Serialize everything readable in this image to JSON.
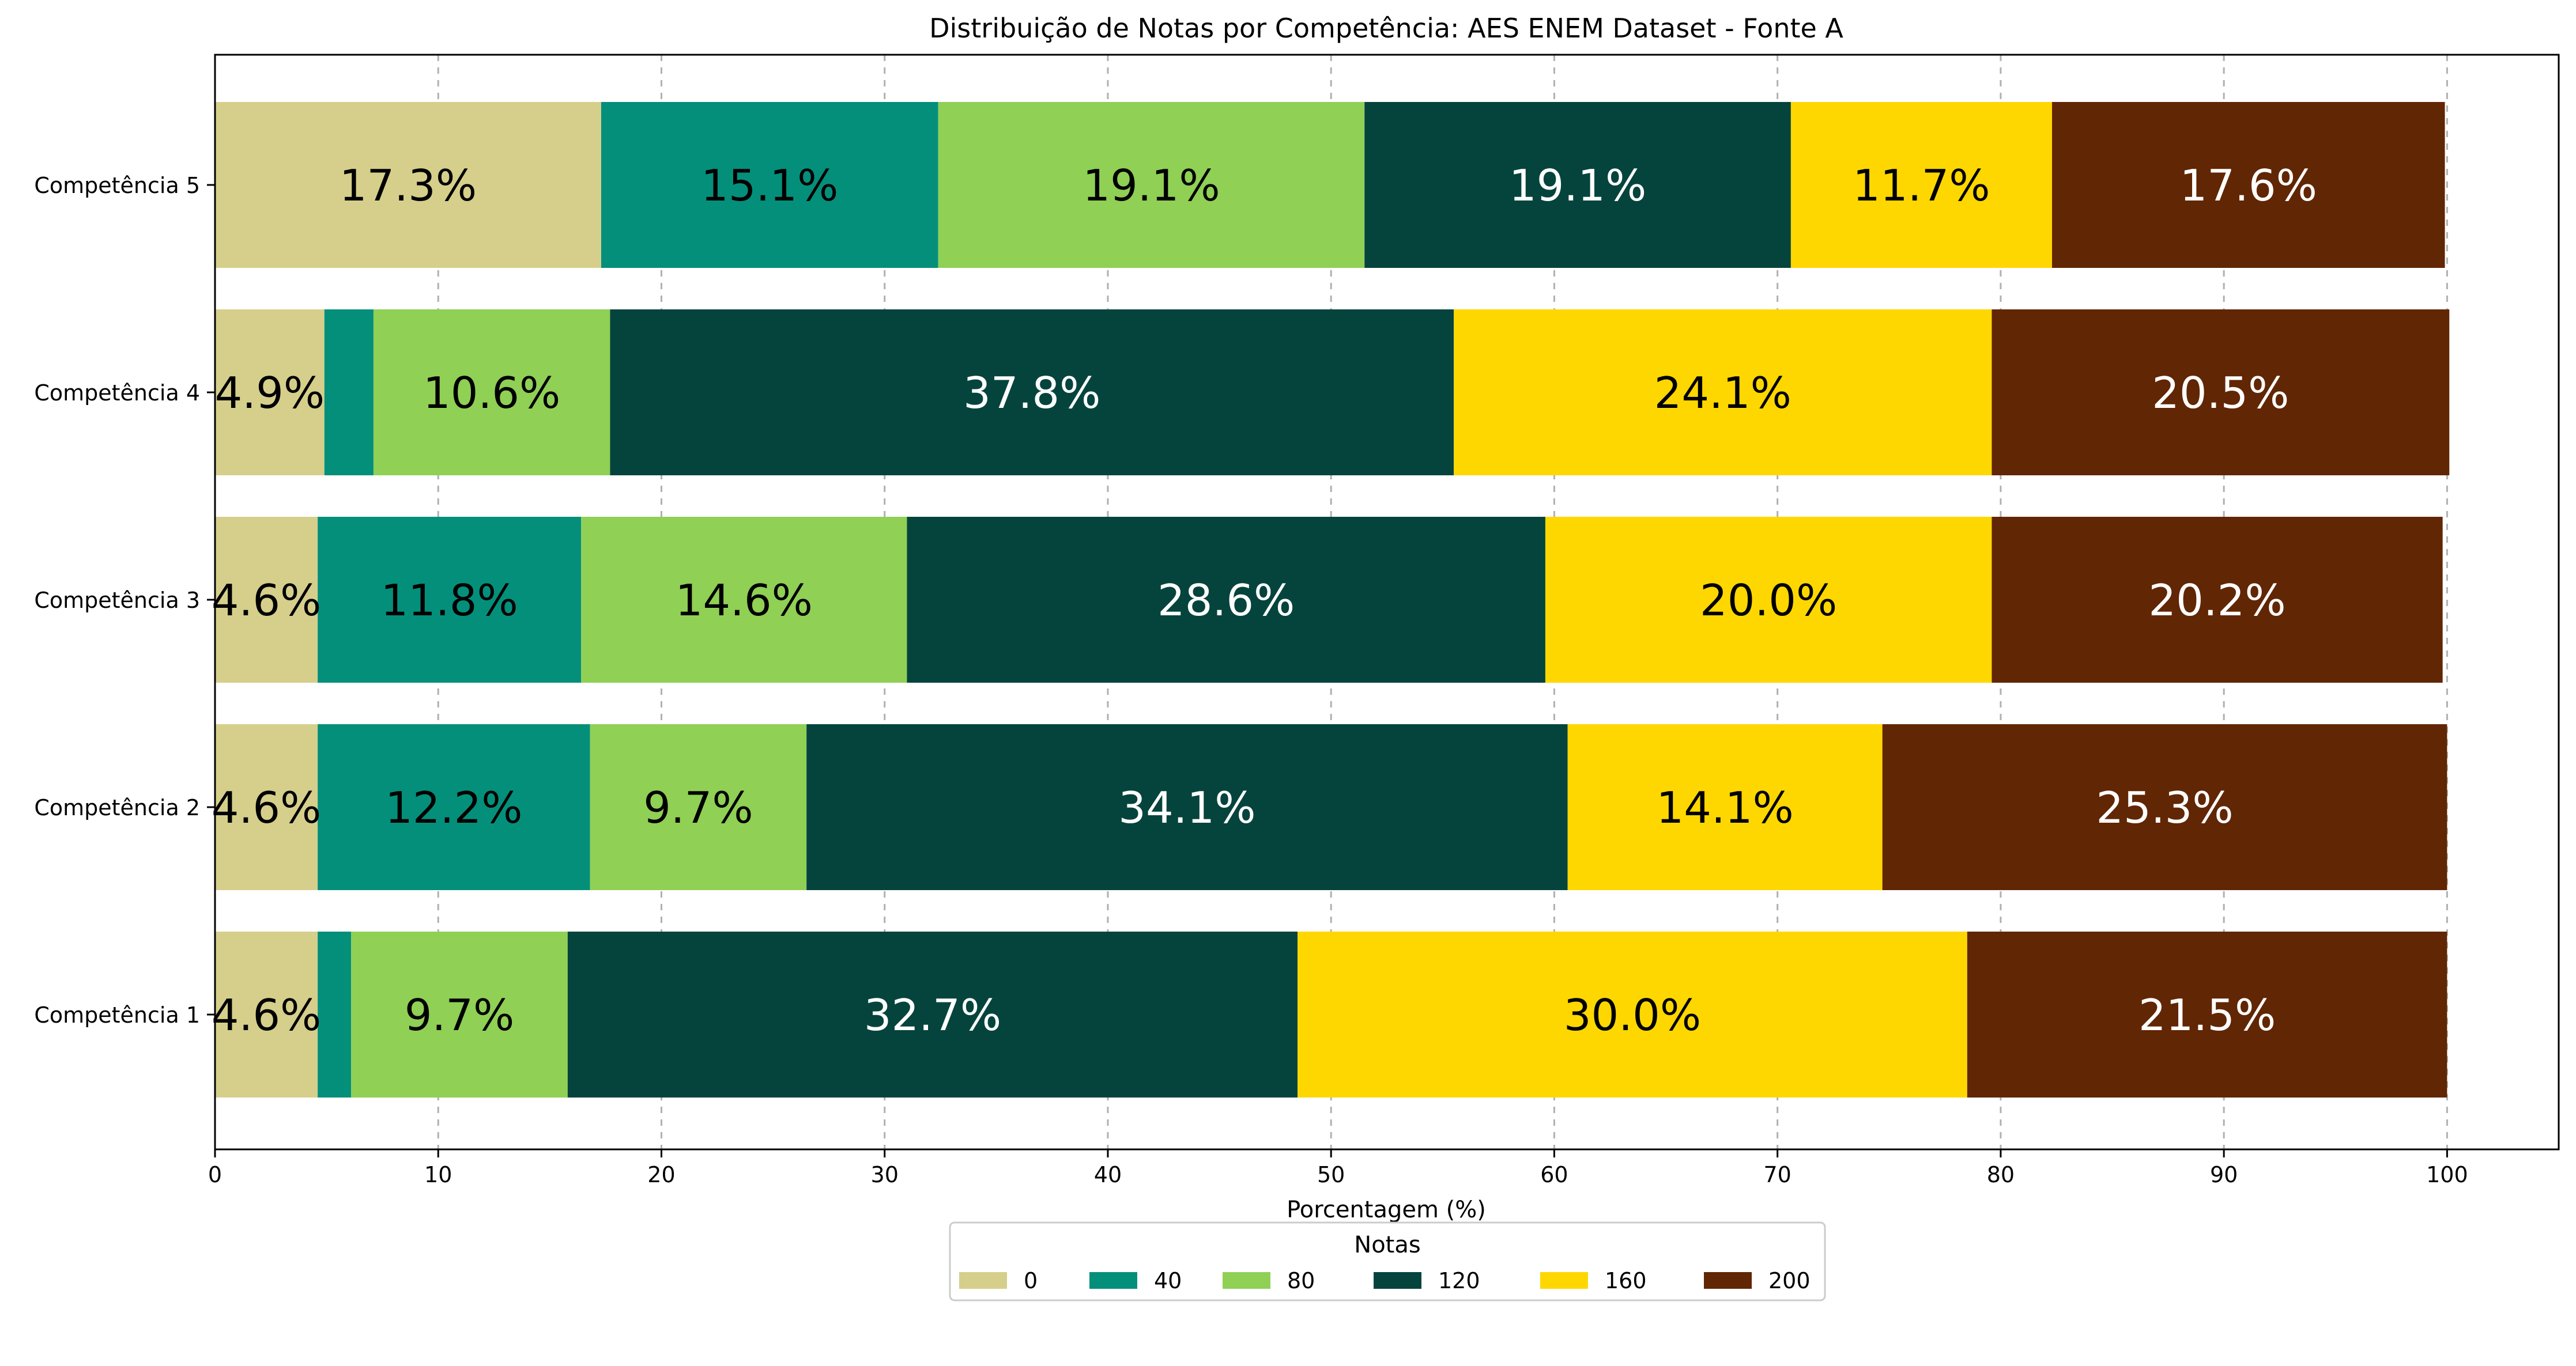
{
  "chart_data": {
    "type": "bar",
    "orientation": "horizontal",
    "stacked": true,
    "title": "Distribuição de Notas por Competência: AES ENEM Dataset - Fonte A",
    "xlabel": "Porcentagem (%)",
    "ylabel": "",
    "xlim": [
      0,
      105
    ],
    "x_ticks": [
      0,
      10,
      20,
      30,
      40,
      50,
      60,
      70,
      80,
      90,
      100
    ],
    "grid": "x-dashed",
    "categories": [
      "Competência 1",
      "Competência 2",
      "Competência 3",
      "Competência 4",
      "Competência 5"
    ],
    "series": [
      {
        "name": "0",
        "color": "#d5cf8b",
        "values": [
          4.6,
          4.6,
          4.6,
          4.9,
          17.3
        ],
        "labels": [
          "4.6%",
          "4.6%",
          "4.6%",
          "4.9%",
          "17.3%"
        ]
      },
      {
        "name": "40",
        "color": "#048f7b",
        "values": [
          1.5,
          12.2,
          11.8,
          2.2,
          15.1
        ],
        "labels": [
          "",
          "12.2%",
          "11.8%",
          "",
          "15.1%"
        ]
      },
      {
        "name": "80",
        "color": "#8fd055",
        "values": [
          9.7,
          9.7,
          14.6,
          10.6,
          19.1
        ],
        "labels": [
          "9.7%",
          "9.7%",
          "14.6%",
          "10.6%",
          "19.1%"
        ]
      },
      {
        "name": "120",
        "color": "#05443d",
        "values": [
          32.7,
          34.1,
          28.6,
          37.8,
          19.1
        ],
        "labels": [
          "32.7%",
          "34.1%",
          "28.6%",
          "37.8%",
          "19.1%"
        ]
      },
      {
        "name": "160",
        "color": "#fed700",
        "values": [
          30.0,
          14.1,
          20.0,
          24.1,
          11.7
        ],
        "labels": [
          "30.0%",
          "14.1%",
          "20.0%",
          "24.1%",
          "11.7%"
        ]
      },
      {
        "name": "200",
        "color": "#612604",
        "values": [
          21.5,
          25.3,
          20.2,
          20.5,
          17.6
        ],
        "labels": [
          "21.5%",
          "25.3%",
          "20.2%",
          "20.5%",
          "17.6%"
        ]
      }
    ],
    "label_colors": {
      "0": "#000000",
      "40": "#000000",
      "80": "#000000",
      "120": "#ffffff",
      "160": "#000000",
      "200": "#ffffff"
    },
    "legend": {
      "title": "Notas",
      "placement": "bottom-center"
    }
  }
}
